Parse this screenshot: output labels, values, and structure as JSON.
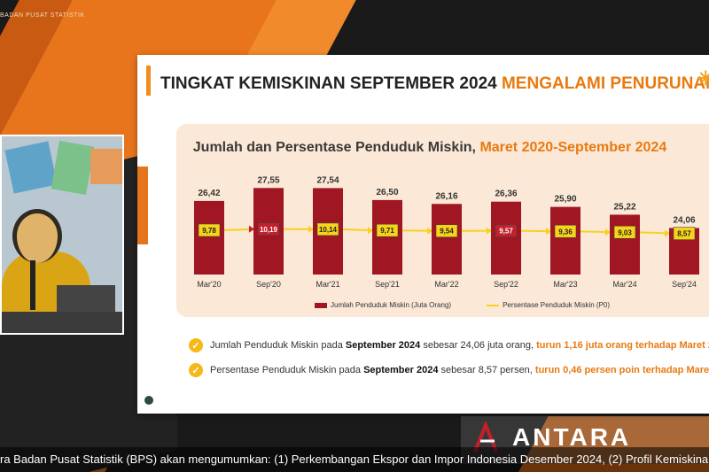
{
  "broadcast": {
    "top_label": "BADAN PUSAT STATISTIK",
    "ticker_text": "ra Badan Pusat Statistik (BPS) akan mengumumkan: (1) Perkembangan Ekspor dan Impor Indonesia Desember 2024, (2) Profil Kemiskinan di",
    "brand": "ANTARA"
  },
  "slide": {
    "title_main": "TINGKAT KEMISKINAN SEPTEMBER 2024 ",
    "title_highlight": "MENGALAMI PENURUNAN",
    "chart_title_main": "Jumlah dan Persentase Penduduk Miskin, ",
    "chart_title_highlight": "Maret 2020-September 2024",
    "legend": {
      "bar": "Jumlah Penduduk Miskin (Juta Orang)",
      "line": "Persentase Penduduk Miskin (P0)"
    },
    "bullets": [
      {
        "pre": "Jumlah Penduduk Miskin pada ",
        "bold": "September 2024",
        "mid": " sebesar 24,06 juta orang, ",
        "hl": "turun 1,16 juta orang terhadap Maret 2"
      },
      {
        "pre": "Persentase Penduduk Miskin pada ",
        "bold": "September 2024",
        "mid": " sebesar 8,57 persen, ",
        "hl": "turun 0,46 persen poin terhadap Maret 2"
      }
    ]
  },
  "colors": {
    "bar": "#a01622",
    "line": "#f7d31a",
    "accent": "#e87a10"
  },
  "chart_data": {
    "type": "bar",
    "title": "Jumlah dan Persentase Penduduk Miskin, Maret 2020-September 2024",
    "categories": [
      "Mar'20",
      "Sep'20",
      "Mar'21",
      "Sep'21",
      "Mar'22",
      "Sep'22",
      "Mar'23",
      "Mar'24",
      "Sep'24"
    ],
    "series": [
      {
        "name": "Jumlah Penduduk Miskin (Juta Orang)",
        "values": [
          26.42,
          27.55,
          27.54,
          26.5,
          26.16,
          26.36,
          25.9,
          25.22,
          24.06
        ],
        "labels": [
          "26,42",
          "27,55",
          "27,54",
          "26,50",
          "26,16",
          "26,36",
          "25,90",
          "25,22",
          "24,06"
        ]
      },
      {
        "name": "Persentase Penduduk Miskin (P0)",
        "values": [
          9.78,
          10.19,
          10.14,
          9.71,
          9.54,
          9.57,
          9.36,
          9.03,
          8.57
        ],
        "labels": [
          "9,78",
          "10,19",
          "10,14",
          "9,71",
          "9,54",
          "9,57",
          "9,36",
          "9,03",
          "8,57"
        ]
      }
    ],
    "legend_position": "bottom"
  }
}
